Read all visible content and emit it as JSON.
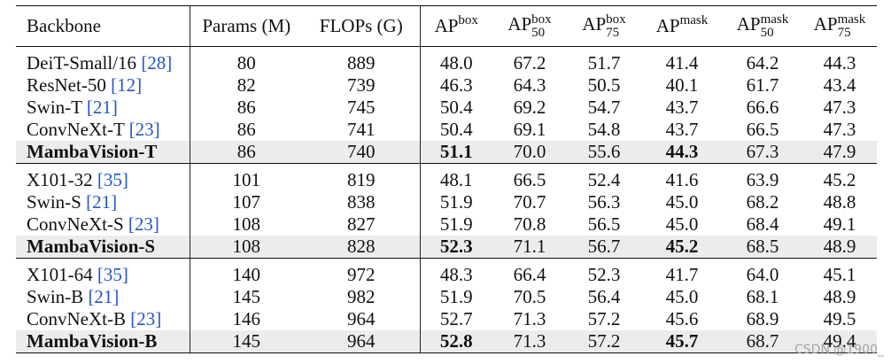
{
  "table": {
    "headers": {
      "backbone": "Backbone",
      "params": "Params (M)",
      "flops": "FLOPs (G)",
      "ap": "AP",
      "ap_sup_box": "box",
      "ap_sup_mask": "mask",
      "sub_50": "50",
      "sub_75": "75"
    },
    "groups": [
      {
        "rows": [
          {
            "name": "DeiT-Small/16",
            "cite": "[28]",
            "params": "80",
            "flops": "889",
            "ap_box": "48.0",
            "ap_box50": "67.2",
            "ap_box75": "51.7",
            "ap_mask": "41.4",
            "ap_mask50": "64.2",
            "ap_mask75": "44.3"
          },
          {
            "name": "ResNet-50",
            "cite": "[12]",
            "params": "82",
            "flops": "739",
            "ap_box": "46.3",
            "ap_box50": "64.3",
            "ap_box75": "50.5",
            "ap_mask": "40.1",
            "ap_mask50": "61.7",
            "ap_mask75": "43.4"
          },
          {
            "name": "Swin-T",
            "cite": "[21]",
            "params": "86",
            "flops": "745",
            "ap_box": "50.4",
            "ap_box50": "69.2",
            "ap_box75": "54.7",
            "ap_mask": "43.7",
            "ap_mask50": "66.6",
            "ap_mask75": "47.3"
          },
          {
            "name": "ConvNeXt-T",
            "cite": "[23]",
            "params": "86",
            "flops": "741",
            "ap_box": "50.4",
            "ap_box50": "69.1",
            "ap_box75": "54.8",
            "ap_mask": "43.7",
            "ap_mask50": "66.5",
            "ap_mask75": "47.3"
          }
        ],
        "highlight": {
          "name": "MambaVision-T",
          "params": "86",
          "flops": "740",
          "ap_box": "51.1",
          "ap_box50": "70.0",
          "ap_box75": "55.6",
          "ap_mask": "44.3",
          "ap_mask50": "67.3",
          "ap_mask75": "47.9"
        }
      },
      {
        "rows": [
          {
            "name": "X101-32",
            "cite": "[35]",
            "params": "101",
            "flops": "819",
            "ap_box": "48.1",
            "ap_box50": "66.5",
            "ap_box75": "52.4",
            "ap_mask": "41.6",
            "ap_mask50": "63.9",
            "ap_mask75": "45.2"
          },
          {
            "name": "Swin-S",
            "cite": "[21]",
            "params": "107",
            "flops": "838",
            "ap_box": "51.9",
            "ap_box50": "70.7",
            "ap_box75": "56.3",
            "ap_mask": "45.0",
            "ap_mask50": "68.2",
            "ap_mask75": "48.8"
          },
          {
            "name": "ConvNeXt-S",
            "cite": "[23]",
            "params": "108",
            "flops": "827",
            "ap_box": "51.9",
            "ap_box50": "70.8",
            "ap_box75": "56.5",
            "ap_mask": "45.0",
            "ap_mask50": "68.4",
            "ap_mask75": "49.1"
          }
        ],
        "highlight": {
          "name": "MambaVision-S",
          "params": "108",
          "flops": "828",
          "ap_box": "52.3",
          "ap_box50": "71.1",
          "ap_box75": "56.7",
          "ap_mask": "45.2",
          "ap_mask50": "68.5",
          "ap_mask75": "48.9"
        }
      },
      {
        "rows": [
          {
            "name": "X101-64",
            "cite": "[35]",
            "params": "140",
            "flops": "972",
            "ap_box": "48.3",
            "ap_box50": "66.4",
            "ap_box75": "52.3",
            "ap_mask": "41.7",
            "ap_mask50": "64.0",
            "ap_mask75": "45.1"
          },
          {
            "name": "Swin-B",
            "cite": "[21]",
            "params": "145",
            "flops": "982",
            "ap_box": "51.9",
            "ap_box50": "70.5",
            "ap_box75": "56.4",
            "ap_mask": "45.0",
            "ap_mask50": "68.1",
            "ap_mask75": "48.9"
          },
          {
            "name": "ConvNeXt-B",
            "cite": "[23]",
            "params": "146",
            "flops": "964",
            "ap_box": "52.7",
            "ap_box50": "71.3",
            "ap_box75": "57.2",
            "ap_mask": "45.6",
            "ap_mask50": "68.9",
            "ap_mask75": "49.5"
          }
        ],
        "highlight": {
          "name": "MambaVision-B",
          "params": "145",
          "flops": "964",
          "ap_box": "52.8",
          "ap_box50": "71.3",
          "ap_box75": "57.2",
          "ap_mask": "45.7",
          "ap_mask50": "68.7",
          "ap_mask75": "49.4"
        }
      }
    ]
  },
  "watermark": "CSDN @1900_",
  "colors": {
    "citation": "#2255cc",
    "highlight_row": "#ececec"
  }
}
